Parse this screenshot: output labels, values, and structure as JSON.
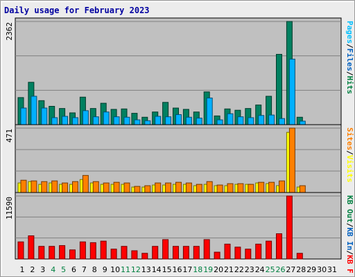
{
  "chart_data": {
    "type": "bar",
    "title": "Daily usage for February 2023",
    "categories": [
      "1",
      "2",
      "3",
      "4",
      "5",
      "6",
      "7",
      "8",
      "9",
      "10",
      "11",
      "12",
      "13",
      "14",
      "15",
      "16",
      "17",
      "18",
      "19",
      "20",
      "21",
      "22",
      "23",
      "24",
      "25",
      "26",
      "27",
      "28",
      "29",
      "30",
      "31"
    ],
    "weekend_days": [
      4,
      5,
      11,
      12,
      18,
      19,
      25,
      26
    ],
    "panels": [
      {
        "ymax_label": "2362",
        "ymax": 2362,
        "legend": [
          {
            "text": "Hits",
            "color": "#008040"
          },
          {
            "text": "/",
            "color": "#000000"
          },
          {
            "text": "Files",
            "color": "#0060c0"
          },
          {
            "text": "/",
            "color": "#000000"
          },
          {
            "text": "Pages",
            "color": "#00c0ff"
          }
        ],
        "series": [
          {
            "name": "Hits",
            "color": "#008060",
            "values": [
              620,
              970,
              550,
              420,
              370,
              270,
              630,
              370,
              490,
              350,
              360,
              260,
              170,
              290,
              510,
              380,
              350,
              290,
              750,
              200,
              360,
              330,
              370,
              450,
              650,
              1610,
              2362,
              170,
              0,
              0,
              0
            ]
          },
          {
            "name": "Files",
            "color": "#00b0ff",
            "values": [
              380,
              650,
              380,
              160,
              190,
              160,
              320,
              180,
              290,
              180,
              170,
              110,
              90,
              190,
              180,
              230,
              170,
              150,
              610,
              110,
              250,
              180,
              160,
              210,
              220,
              140,
              1500,
              80,
              0,
              0,
              0
            ]
          },
          {
            "name": "Pages",
            "color": "#00e0ff",
            "values": [
              0,
              0,
              0,
              0,
              0,
              0,
              0,
              0,
              0,
              0,
              0,
              0,
              0,
              0,
              0,
              0,
              0,
              0,
              0,
              0,
              0,
              0,
              0,
              0,
              0,
              0,
              0,
              0,
              0,
              0,
              0
            ]
          }
        ]
      },
      {
        "ymax_label": "471",
        "ymax": 471,
        "legend": [
          {
            "text": "Visits",
            "color": "#ffff00"
          },
          {
            "text": "/",
            "color": "#000000"
          },
          {
            "text": "Sites",
            "color": "#ff8000"
          }
        ],
        "series": [
          {
            "name": "Visits",
            "color": "#ffff00",
            "values": [
              70,
              80,
              60,
              70,
              60,
              60,
              95,
              70,
              60,
              60,
              60,
              40,
              40,
              55,
              55,
              60,
              60,
              50,
              60,
              50,
              50,
              60,
              60,
              70,
              65,
              50,
              440,
              40,
              0,
              0,
              0
            ]
          },
          {
            "name": "Sites",
            "color": "#ff8000",
            "values": [
              90,
              85,
              80,
              85,
              70,
              80,
              125,
              80,
              70,
              75,
              70,
              45,
              50,
              70,
              70,
              75,
              70,
              60,
              80,
              55,
              65,
              65,
              60,
              75,
              75,
              85,
              471,
              50,
              0,
              0,
              0
            ]
          }
        ]
      },
      {
        "ymax_label": "11590",
        "ymax": 11590,
        "legend": [
          {
            "text": "KB F",
            "color": "#ff0000"
          },
          {
            "text": "/",
            "color": "#000000"
          },
          {
            "text": "KB In",
            "color": "#0060c0"
          },
          {
            "text": "/",
            "color": "#000000"
          },
          {
            "text": "KB Out",
            "color": "#008040"
          }
        ],
        "series": [
          {
            "name": "KB F",
            "color": "#ff0000",
            "values": [
              3150,
              4270,
              2330,
              2330,
              2470,
              1680,
              3150,
              3010,
              3290,
              1820,
              2330,
              1520,
              1050,
              2330,
              3570,
              2330,
              2330,
              2330,
              3570,
              1260,
              2740,
              2190,
              1820,
              2740,
              3290,
              4650,
              11590,
              1050,
              0,
              0,
              0
            ]
          }
        ]
      }
    ]
  }
}
